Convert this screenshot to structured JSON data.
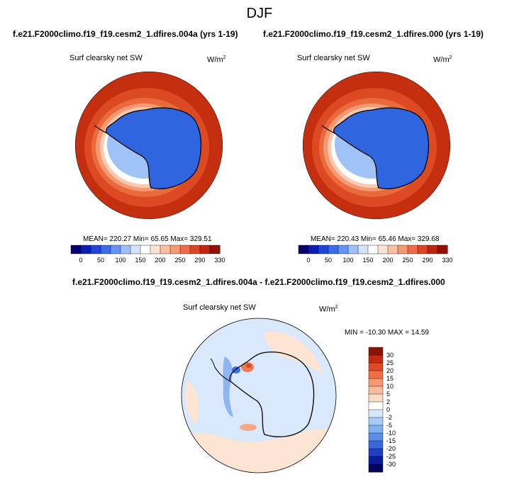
{
  "page_title": "DJF",
  "panels": [
    {
      "subtitle": "f.e21.F2000climo.f19_f19.cesm2_1.dfires.004a (yrs 1-19)",
      "variable": "Surf clearsky net SW",
      "units_base": "W/m",
      "units_exp": "2",
      "stats": "MEAN= 220.27  Min=  65.65  Max= 329.51",
      "mean": 220.27,
      "min": 65.65,
      "max": 329.51
    },
    {
      "subtitle": "f.e21.F2000climo.f19_f19.cesm2_1.dfires.000 (yrs 1-19)",
      "variable": "Surf clearsky net SW",
      "units_base": "W/m",
      "units_exp": "2",
      "stats": "MEAN= 220.43  Min=  65.46  Max= 329.68",
      "mean": 220.43,
      "min": 65.46,
      "max": 329.68
    }
  ],
  "top_colorbar": {
    "labels": [
      "0",
      "50",
      "100",
      "150",
      "200",
      "250",
      "290",
      "330"
    ],
    "colors": [
      "#08006f",
      "#0a1fb0",
      "#1f45d8",
      "#3a6be8",
      "#6494f2",
      "#9ebff8",
      "#d4e4fb",
      "#ffffff",
      "#fde3d4",
      "#fbc0a2",
      "#f79874",
      "#ee6c48",
      "#dd4426",
      "#c0260f",
      "#8e1303"
    ]
  },
  "diff_panel": {
    "title": "f.e21.F2000climo.f19_f19.cesm2_1.dfires.004a - f.e21.F2000climo.f19_f19.cesm2_1.dfires.000",
    "variable": "Surf clearsky net SW",
    "units_base": "W/m",
    "units_exp": "2",
    "stats": "MIN = -10.30  MAX =  14.59",
    "min": -10.3,
    "max": 14.59
  },
  "diff_colorbar": {
    "labels": [
      "30",
      "25",
      "20",
      "15",
      "10",
      "5",
      "2",
      "0",
      "-2",
      "-5",
      "-10",
      "-15",
      "-20",
      "-25",
      "-30"
    ],
    "colors": [
      "#8a1503",
      "#c42a0d",
      "#e04a26",
      "#f07046",
      "#f59770",
      "#f9bb9e",
      "#fbdbc8",
      "#ffffff",
      "#d6e8fa",
      "#a7cbf3",
      "#7fb0ef",
      "#5b8ee6",
      "#3a68db",
      "#2040c4",
      "#0a1c9c",
      "#04045e"
    ]
  },
  "colors": {
    "sea_ice_blue": "#2f66e0",
    "ocean_red": "#c4300f",
    "ring_red": "#e85a33",
    "coast": "#000000"
  }
}
